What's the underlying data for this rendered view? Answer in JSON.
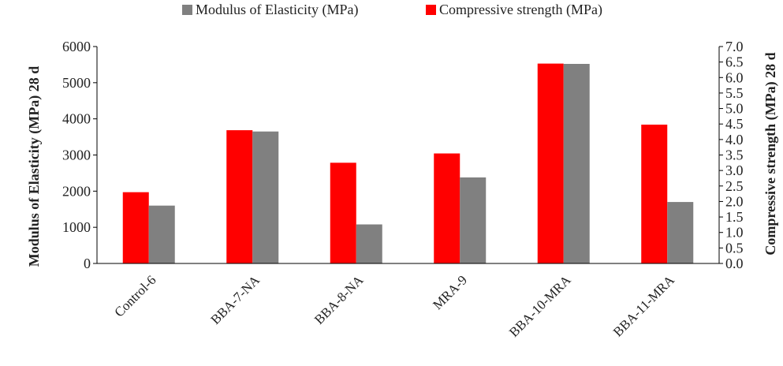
{
  "chart_data": {
    "type": "bar",
    "title": "",
    "categories": [
      "Control-6",
      "BBA-7-NA",
      "BBA-8-NA",
      "MRA-9",
      "BBA-10-MRA",
      "BBA-11-MRA"
    ],
    "series": [
      {
        "name": "Compressive strength (MPa)",
        "axis": "right",
        "color": "#ff0000",
        "values": [
          2.3,
          4.3,
          3.25,
          3.55,
          6.45,
          4.48
        ]
      },
      {
        "name": "Modulus of Elasticity (MPa)",
        "axis": "left",
        "color": "#808080",
        "values": [
          1600,
          3650,
          1080,
          2380,
          5520,
          1700
        ]
      }
    ],
    "legend_order": [
      1,
      0
    ],
    "legend_position": "top-center",
    "left_axis": {
      "label": "Modulus of Elasticity (MPa) 28 d",
      "ylim": [
        0,
        6000
      ],
      "ticks": [
        "0",
        "1000",
        "2000",
        "3000",
        "4000",
        "5000",
        "6000"
      ]
    },
    "right_axis": {
      "label": "Compressive strength (MPa) 28 d",
      "ylim": [
        0,
        7
      ],
      "ticks": [
        "0.0",
        "0.5",
        "1.0",
        "1.5",
        "2.0",
        "2.5",
        "3.0",
        "3.5",
        "4.0",
        "4.5",
        "5.0",
        "5.5",
        "6.0",
        "6.5",
        "7.0"
      ]
    },
    "grid": false
  }
}
